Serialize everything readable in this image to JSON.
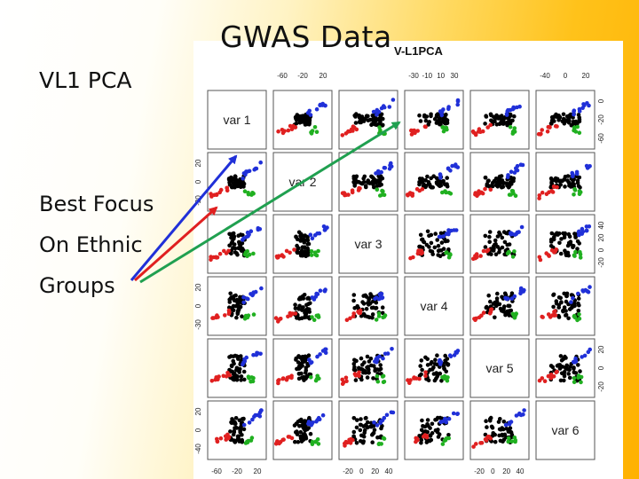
{
  "slide": {
    "title": "GWAS Data",
    "subtitle": "VL1 PCA",
    "note_lines": [
      "Best Focus",
      "On Ethnic",
      "Groups"
    ]
  },
  "figure": {
    "title": "V-L1PCA",
    "variables": [
      "var 1",
      "var 2",
      "var 3",
      "var 4",
      "var 5",
      "var 6"
    ],
    "top_axis_labels": [
      [
        "-60",
        "-20",
        "20"
      ],
      [
        "-30",
        "-10",
        "10",
        "30"
      ],
      [
        "-40",
        "0",
        "20"
      ]
    ],
    "bottom_axis_labels": [
      [
        "-60",
        "-20",
        "20"
      ],
      [
        "-20",
        "0",
        "20",
        "40"
      ],
      [
        "-20",
        "0",
        "20",
        "40"
      ]
    ],
    "left_axis_labels": [
      [
        "20",
        "0",
        "-20"
      ],
      [
        "20",
        "0",
        "-30"
      ],
      [
        "20",
        "0",
        "-40"
      ]
    ],
    "right_axis_labels": [
      [
        "0",
        "-20",
        "-60"
      ],
      [
        "40",
        "20",
        "0",
        "-20"
      ],
      [
        "20",
        "0",
        "-20"
      ]
    ],
    "group_colors": {
      "group_1": "#000000",
      "group_2": "#2030d8",
      "group_3": "#e02020",
      "group_4": "#20b020"
    }
  },
  "arrow_colors": {
    "blue": "#2030d8",
    "red": "#e02020",
    "green": "#20a050"
  }
}
